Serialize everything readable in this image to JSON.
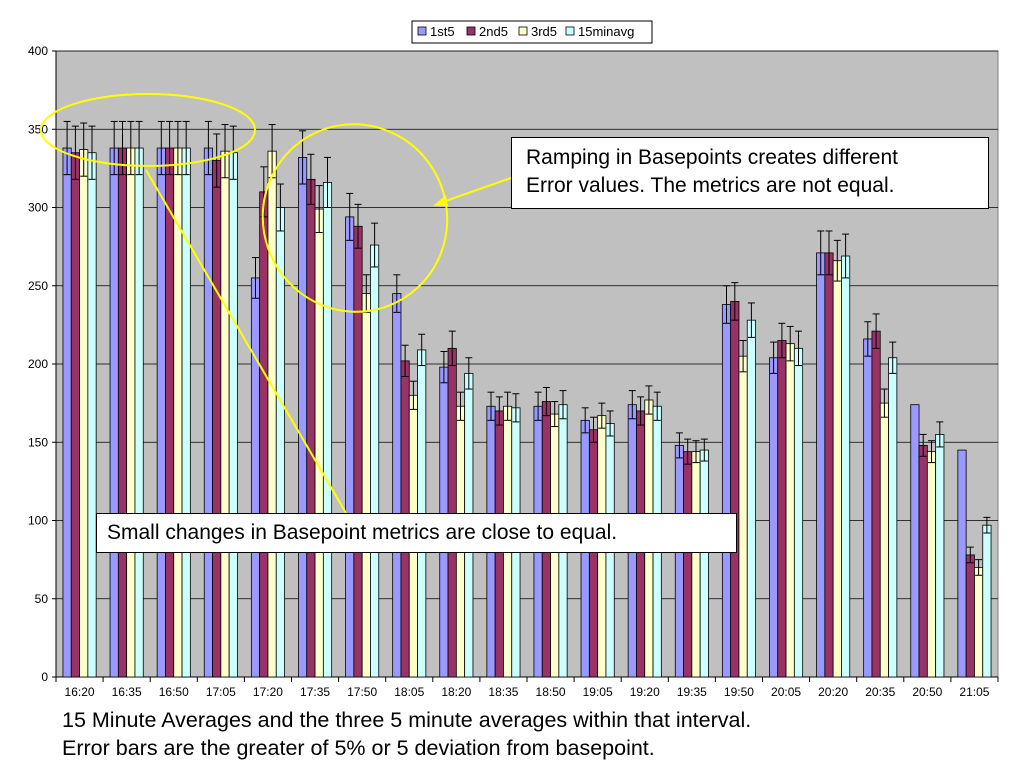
{
  "chart_data": {
    "type": "bar",
    "categories": [
      "16:20",
      "16:35",
      "16:50",
      "17:05",
      "17:20",
      "17:35",
      "17:50",
      "18:05",
      "18:20",
      "18:35",
      "18:50",
      "19:05",
      "19:20",
      "19:35",
      "19:50",
      "20:05",
      "20:20",
      "20:35",
      "20:50",
      "21:05"
    ],
    "series": [
      {
        "name": "1st5",
        "color": "#9999ff",
        "values": [
          338,
          338,
          338,
          338,
          255,
          332,
          294,
          245,
          198,
          173,
          173,
          164,
          174,
          148,
          238,
          204,
          271,
          216,
          174,
          145
        ],
        "errors": [
          17,
          17,
          17,
          17,
          13,
          17,
          15,
          12,
          10,
          9,
          9,
          8,
          9,
          8,
          12,
          10,
          14,
          11,
          0,
          0
        ]
      },
      {
        "name": "2nd5",
        "color": "#993366",
        "values": [
          335,
          338,
          338,
          330,
          310,
          318,
          288,
          202,
          210,
          170,
          176,
          158,
          170,
          144,
          240,
          215,
          271,
          221,
          148,
          78
        ],
        "errors": [
          17,
          17,
          17,
          17,
          16,
          16,
          14,
          10,
          11,
          9,
          9,
          8,
          9,
          8,
          12,
          11,
          14,
          11,
          7,
          5
        ]
      },
      {
        "name": "3rd5",
        "color": "#ffffcc",
        "values": [
          337,
          338,
          338,
          336,
          336,
          299,
          245,
          180,
          173,
          173,
          168,
          167,
          177,
          144,
          205,
          213,
          266,
          175,
          144,
          70
        ],
        "errors": [
          17,
          17,
          17,
          17,
          17,
          15,
          12,
          9,
          9,
          9,
          8,
          8,
          9,
          7,
          10,
          11,
          13,
          9,
          7,
          5
        ]
      },
      {
        "name": "15minavg",
        "color": "#ccffff",
        "values": [
          335,
          338,
          338,
          335,
          300,
          316,
          276,
          209,
          194,
          172,
          174,
          162,
          173,
          145,
          228,
          210,
          269,
          204,
          155,
          97
        ],
        "errors": [
          17,
          17,
          17,
          17,
          15,
          16,
          14,
          10,
          10,
          9,
          9,
          8,
          9,
          7,
          11,
          11,
          14,
          10,
          8,
          5
        ]
      }
    ],
    "ylim": [
      0,
      400
    ],
    "yticks": [
      0,
      50,
      100,
      150,
      200,
      250,
      300,
      350,
      400
    ],
    "grid": true,
    "legend_position": "top",
    "plot_background": "#c0c0c0",
    "annotation_color": "#ffff00",
    "annotations": [
      "Ramping in Basepoints creates different",
      "Error values.  The metrics are not equal.",
      "Small changes in Basepoint metrics are close to equal."
    ]
  },
  "caption": {
    "line1": "15 Minute Averages and the three 5 minute averages within that interval.",
    "line2": "Error bars are the greater of 5% or 5 deviation from basepoint."
  }
}
